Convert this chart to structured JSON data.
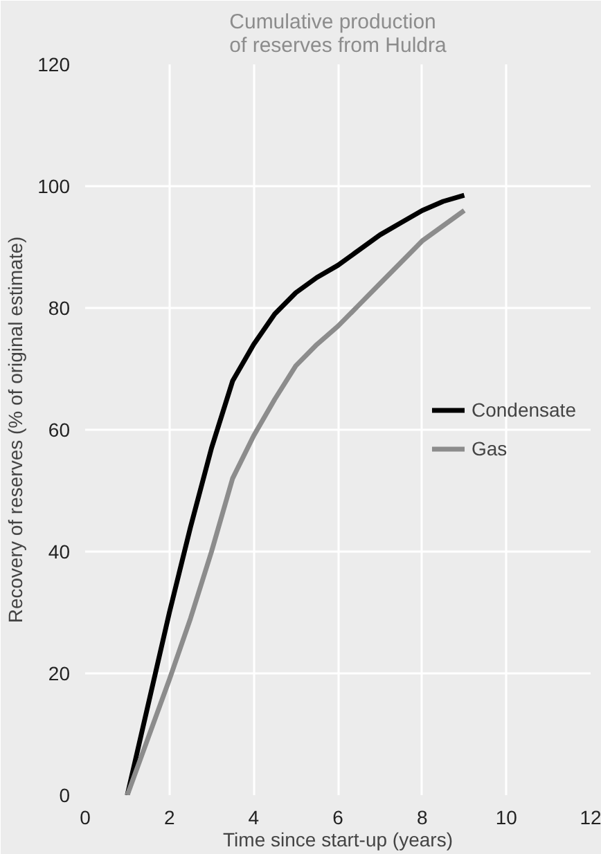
{
  "chart_data": {
    "type": "line",
    "title": "Cumulative production\nof reserves from Huldra",
    "xlabel": "Time since start-up (years)",
    "ylabel": "Recovery of reserves (% of original estimate)",
    "x": [
      1,
      1.5,
      2,
      2.5,
      3,
      3.5,
      4,
      4.5,
      5,
      5.5,
      6,
      6.5,
      7,
      7.5,
      8,
      8.5,
      9
    ],
    "series": [
      {
        "name": "Condensate",
        "color": "#000000",
        "values": [
          0,
          15,
          30,
          44,
          57,
          68,
          74,
          79,
          82.5,
          85,
          87,
          89.5,
          92,
          94,
          96,
          97.5,
          98.5
        ]
      },
      {
        "name": "Gas",
        "color": "#8c8c8c",
        "values": [
          0,
          9.5,
          19,
          29,
          40,
          52,
          59,
          65,
          70.5,
          74,
          77,
          80.5,
          84,
          87.5,
          91,
          93.5,
          96
        ]
      }
    ],
    "xlim": [
      0,
      12
    ],
    "xticks": [
      0,
      2,
      4,
      6,
      8,
      10,
      12
    ],
    "ylim": [
      0,
      120
    ],
    "yticks": [
      0,
      20,
      40,
      60,
      80,
      100,
      120
    ],
    "grid": true,
    "legend": "right",
    "line_style": "solid"
  }
}
